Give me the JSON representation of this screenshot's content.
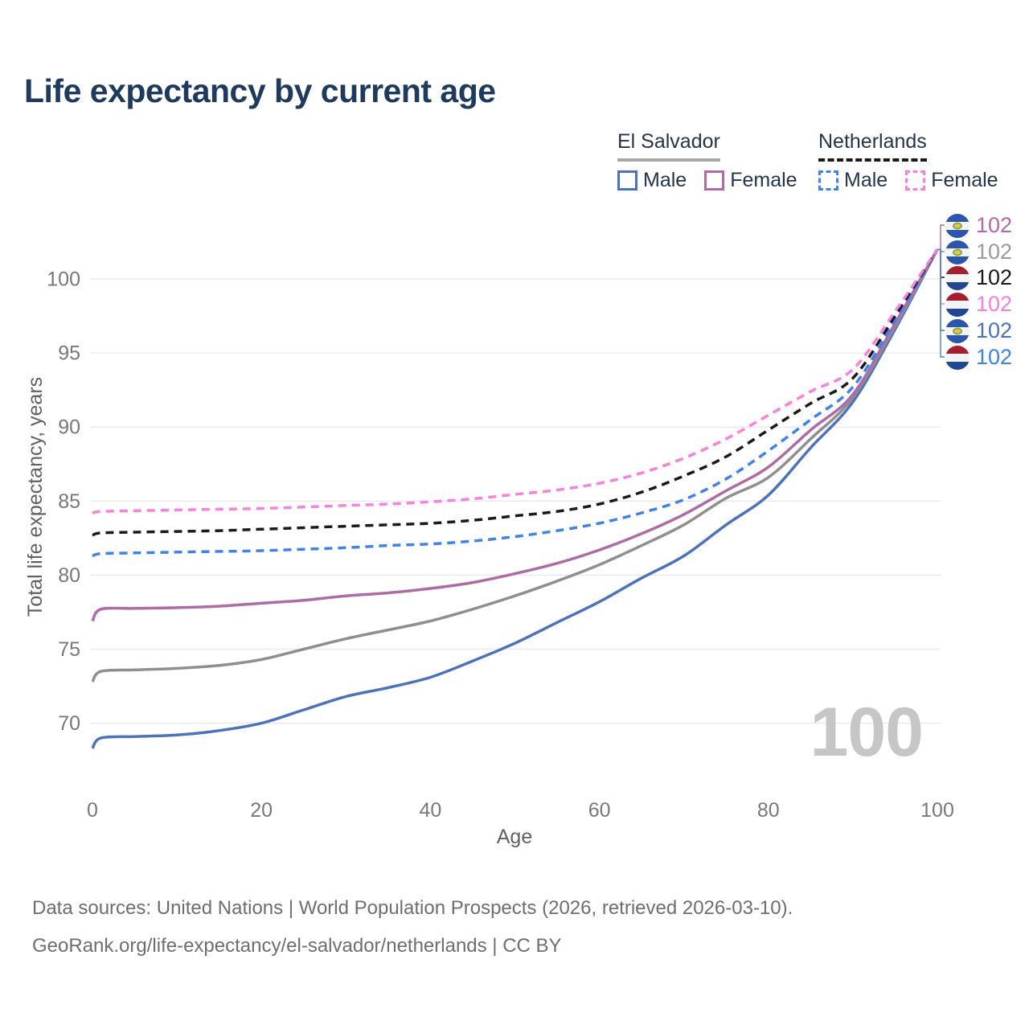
{
  "title": "Life expectancy by current age",
  "legend": {
    "groups": [
      {
        "country": "El Salvador",
        "line_style": "solid",
        "underline_color": "#a8a8a8",
        "items": [
          {
            "label": "Male",
            "color": "#4b72c0"
          },
          {
            "label": "Female",
            "color": "#b06aa5"
          }
        ]
      },
      {
        "country": "Netherlands",
        "line_style": "dashed",
        "underline_color": "#1a1a1a",
        "items": [
          {
            "label": "Male",
            "color": "#3b82f6"
          },
          {
            "label": "Female",
            "color": "#fb7fdc"
          }
        ]
      }
    ]
  },
  "chart_data": {
    "type": "line",
    "xlabel": "Age",
    "ylabel": "Total life expectancy, years",
    "xticks": [
      0,
      20,
      40,
      60,
      80,
      100
    ],
    "yticks": [
      70,
      75,
      80,
      85,
      90,
      95,
      100
    ],
    "xlim": [
      0,
      100
    ],
    "ylim": [
      67.5,
      103.5
    ],
    "grid": "horizontal",
    "legend_position": "top-right",
    "x": [
      0,
      1,
      5,
      10,
      15,
      20,
      25,
      30,
      35,
      40,
      45,
      50,
      55,
      60,
      65,
      70,
      75,
      80,
      85,
      90,
      95,
      100
    ],
    "series": [
      {
        "name": "El Salvador Male",
        "country": "El Salvador",
        "sex": "Male",
        "color": "#4b72c0",
        "dashed": false,
        "values": [
          68.3,
          69.0,
          69.1,
          69.2,
          69.5,
          70.0,
          70.9,
          71.8,
          72.4,
          73.1,
          74.2,
          75.4,
          76.8,
          78.2,
          79.8,
          81.3,
          83.4,
          85.4,
          88.6,
          91.7,
          96.6,
          102.0
        ]
      },
      {
        "name": "El Salvador (both sexes)",
        "country": "El Salvador",
        "sex": "Both",
        "color": "#8f8f8f",
        "dashed": false,
        "values": [
          72.8,
          73.5,
          73.6,
          73.7,
          73.9,
          74.3,
          75.0,
          75.7,
          76.3,
          76.9,
          77.7,
          78.6,
          79.6,
          80.7,
          82.0,
          83.4,
          85.2,
          86.6,
          89.2,
          92.0,
          96.8,
          102.0
        ]
      },
      {
        "name": "El Salvador Female",
        "country": "El Salvador",
        "sex": "Female",
        "color": "#b06aa5",
        "dashed": false,
        "values": [
          76.9,
          77.7,
          77.75,
          77.8,
          77.9,
          78.1,
          78.3,
          78.6,
          78.8,
          79.1,
          79.5,
          80.1,
          80.8,
          81.7,
          82.8,
          84.1,
          85.7,
          87.3,
          89.8,
          92.2,
          97.0,
          102.0
        ]
      },
      {
        "name": "Netherlands Male",
        "country": "Netherlands",
        "sex": "Male",
        "color": "#3b82f6",
        "dashed": true,
        "values": [
          81.3,
          81.45,
          81.5,
          81.55,
          81.6,
          81.65,
          81.75,
          81.85,
          82.0,
          82.1,
          82.3,
          82.6,
          83.0,
          83.5,
          84.2,
          85.1,
          86.5,
          88.4,
          90.5,
          92.7,
          97.2,
          102.0
        ]
      },
      {
        "name": "Netherlands (both sexes)",
        "country": "Netherlands",
        "sex": "Both",
        "color": "#1a1a1a",
        "dashed": true,
        "values": [
          82.7,
          82.85,
          82.9,
          82.95,
          83.0,
          83.1,
          83.2,
          83.3,
          83.4,
          83.5,
          83.7,
          84.0,
          84.3,
          84.8,
          85.6,
          86.7,
          88.0,
          89.8,
          91.6,
          93.3,
          97.5,
          102.0
        ]
      },
      {
        "name": "Netherlands Female",
        "country": "Netherlands",
        "sex": "Female",
        "color": "#fb7fdc",
        "dashed": true,
        "values": [
          84.2,
          84.3,
          84.35,
          84.4,
          84.45,
          84.5,
          84.6,
          84.7,
          84.8,
          84.95,
          85.15,
          85.45,
          85.75,
          86.2,
          86.9,
          87.9,
          89.2,
          90.8,
          92.4,
          93.9,
          97.8,
          102.0
        ]
      }
    ]
  },
  "end_labels": [
    {
      "flag": "el-salvador",
      "series": "El Salvador Female",
      "value": "102",
      "color": "#b06aa5"
    },
    {
      "flag": "el-salvador",
      "series": "El Salvador (both sexes)",
      "value": "102",
      "color": "#9a9a9a"
    },
    {
      "flag": "netherlands",
      "series": "Netherlands (both sexes)",
      "value": "102",
      "color": "#1a1a1a"
    },
    {
      "flag": "netherlands",
      "series": "Netherlands Female",
      "value": "102",
      "color": "#fb7fdc"
    },
    {
      "flag": "el-salvador",
      "series": "El Salvador Male",
      "value": "102",
      "color": "#4b72c0"
    },
    {
      "flag": "netherlands",
      "series": "Netherlands Male",
      "value": "102",
      "color": "#3b82f6"
    }
  ],
  "watermark": "100",
  "footer": {
    "line1": "Data sources: United Nations | World Population Prospects (2026, retrieved 2026-03-10).",
    "line2": "GeoRank.org/life-expectancy/el-salvador/netherlands | CC BY"
  }
}
